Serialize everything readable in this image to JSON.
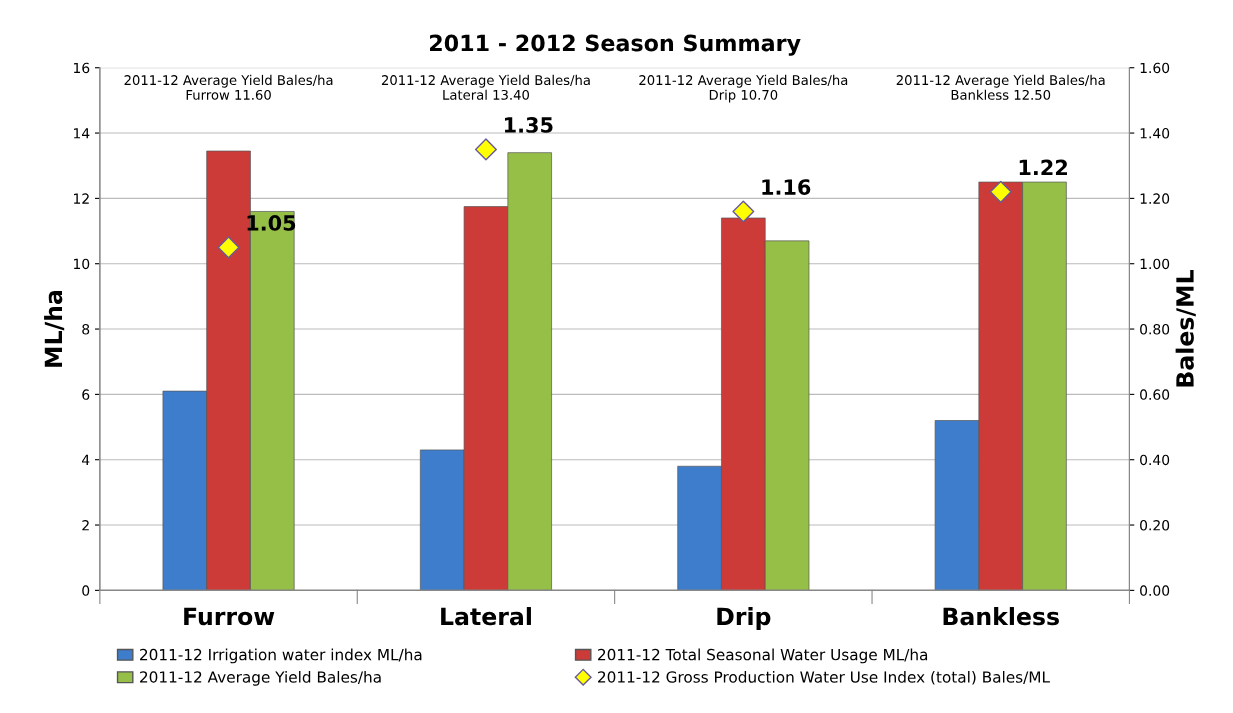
{
  "chart_data": {
    "type": "bar",
    "title": "2011 - 2012 Season Summary",
    "categories": [
      "Furrow",
      "Lateral",
      "Drip",
      "Bankless"
    ],
    "ylabel": "ML/ha",
    "y2label": "Bales/ML",
    "ylim": [
      0,
      16
    ],
    "yticks": [
      0,
      2,
      4,
      6,
      8,
      10,
      12,
      14,
      16
    ],
    "y2lim": [
      0,
      1.6
    ],
    "y2ticks": [
      {
        "value": 0,
        "label": "0.00"
      },
      {
        "value": 0.2,
        "label": "0.20"
      },
      {
        "value": 0.4,
        "label": "0.40"
      },
      {
        "value": 0.6,
        "label": "0.60"
      },
      {
        "value": 0.8,
        "label": "0.80"
      },
      {
        "value": 1.0,
        "label": "1.00"
      },
      {
        "value": 1.2,
        "label": "1.20"
      },
      {
        "value": 1.4,
        "label": "1.40"
      },
      {
        "value": 1.6,
        "label": "1.60"
      }
    ],
    "grid": "y",
    "legend": "bottom",
    "series": [
      {
        "name": "2011-12 Irrigation water index ML/ha",
        "color": "#3d7dcc",
        "values": [
          6.1,
          4.3,
          3.8,
          5.2
        ]
      },
      {
        "name": "2011-12 Total Seasonal Water Usage ML/ha",
        "color": "#cc3b38",
        "values": [
          13.45,
          11.75,
          11.4,
          12.5
        ]
      },
      {
        "name": "2011-12 Average Yield Bales/ha",
        "color": "#96bf48",
        "values": [
          11.6,
          13.4,
          10.7,
          12.5
        ]
      },
      {
        "name": "2011-12 Gross Production Water Use Index (total) Bales/ML",
        "type": "scatter",
        "axis": "y2",
        "marker": "diamond",
        "color": "#ffff00",
        "values": [
          1.05,
          1.35,
          1.16,
          1.22
        ],
        "data_labels": true
      }
    ],
    "annotations": [
      "2011-12 Average Yield Bales/ha\nFurrow 11.60",
      "2011-12 Average Yield Bales/ha\nLateral 13.40",
      "2011-12 Average Yield Bales/ha\nDrip 10.70",
      "2011-12 Average Yield Bales/ha\nBankless 12.50"
    ]
  }
}
